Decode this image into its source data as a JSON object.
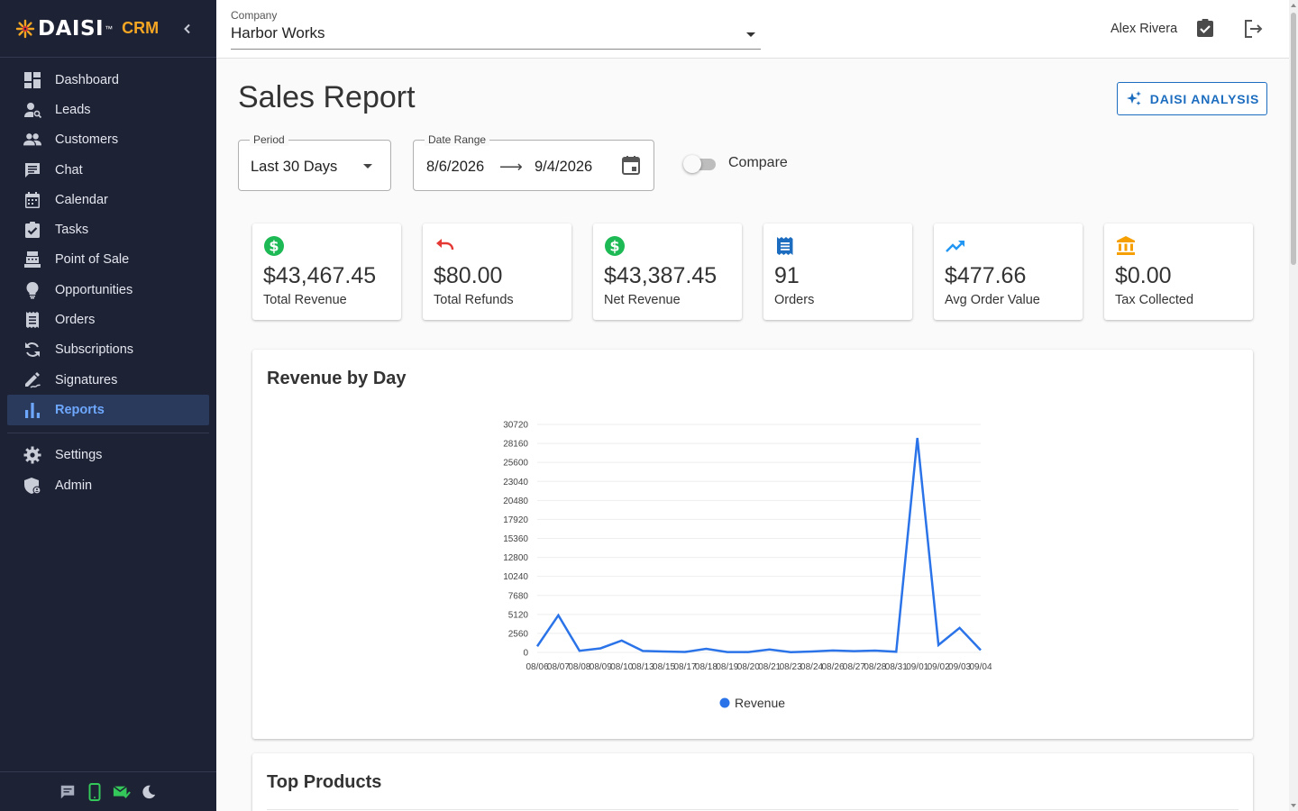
{
  "brand": {
    "name": "DAISI",
    "tm": "™",
    "product": "CRM",
    "accent": "#f5a623"
  },
  "sidebar": {
    "items": [
      {
        "label": "Dashboard",
        "icon": "dashboard-icon"
      },
      {
        "label": "Leads",
        "icon": "person-search-icon"
      },
      {
        "label": "Customers",
        "icon": "people-icon"
      },
      {
        "label": "Chat",
        "icon": "chat-icon"
      },
      {
        "label": "Calendar",
        "icon": "calendar-icon"
      },
      {
        "label": "Tasks",
        "icon": "task-check-icon"
      },
      {
        "label": "Point of Sale",
        "icon": "register-icon"
      },
      {
        "label": "Opportunities",
        "icon": "lightbulb-icon"
      },
      {
        "label": "Orders",
        "icon": "receipt-icon"
      },
      {
        "label": "Subscriptions",
        "icon": "refresh-icon"
      },
      {
        "label": "Signatures",
        "icon": "signature-icon"
      },
      {
        "label": "Reports",
        "icon": "bar-chart-icon",
        "active": true
      }
    ],
    "bottom_items": [
      {
        "label": "Settings",
        "icon": "gear-icon"
      },
      {
        "label": "Admin",
        "icon": "admin-shield-icon"
      }
    ],
    "footer_icons": [
      "chat-bubble-icon",
      "mobile-phone-icon",
      "mail-check-icon",
      "dark-mode-icon"
    ]
  },
  "topbar": {
    "company_label": "Company",
    "company_value": "Harbor Works",
    "user_name": "Alex Rivera"
  },
  "page": {
    "title": "Sales Report",
    "analysis_button": "DAISI ANALYSIS",
    "period": {
      "label": "Period",
      "value": "Last 30 Days"
    },
    "date_range": {
      "label": "Date Range",
      "start": "8/6/2026",
      "arrow": "⟶",
      "end": "9/4/2026"
    },
    "compare_label": "Compare"
  },
  "kpis": [
    {
      "value": "$43,467.45",
      "label": "Total Revenue",
      "icon": "dollar-circle-icon",
      "color": "#1db954"
    },
    {
      "value": "$80.00",
      "label": "Total Refunds",
      "icon": "undo-icon",
      "color": "#e53935"
    },
    {
      "value": "$43,387.45",
      "label": "Net Revenue",
      "icon": "dollar-circle-icon",
      "color": "#1db954"
    },
    {
      "value": "91",
      "label": "Orders",
      "icon": "receipt-icon",
      "color": "#1c6dbf"
    },
    {
      "value": "$477.66",
      "label": "Avg Order Value",
      "icon": "trending-up-icon",
      "color": "#2196f3"
    },
    {
      "value": "$0.00",
      "label": "Tax Collected",
      "icon": "bank-icon",
      "color": "#f5a000"
    }
  ],
  "chart": {
    "title": "Revenue by Day"
  },
  "chart_data": {
    "type": "line",
    "title": "Revenue by Day",
    "categories": [
      "08/06",
      "08/07",
      "08/08",
      "08/09",
      "08/10",
      "08/13",
      "08/15",
      "08/17",
      "08/18",
      "08/19",
      "08/20",
      "08/21",
      "08/23",
      "08/24",
      "08/26",
      "08/27",
      "08/28",
      "08/31",
      "09/01",
      "09/02",
      "09/03",
      "09/04"
    ],
    "series": [
      {
        "name": "Revenue",
        "color": "#2b73e8",
        "values": [
          820,
          5000,
          220,
          550,
          1600,
          200,
          120,
          60,
          480,
          40,
          50,
          400,
          30,
          120,
          260,
          170,
          250,
          90,
          28900,
          1000,
          3300,
          300
        ]
      }
    ],
    "yticks": [
      0,
      2560,
      5120,
      7680,
      10240,
      12800,
      15360,
      17920,
      20480,
      23040,
      25600,
      28160,
      30720
    ],
    "ylim": [
      0,
      30720
    ],
    "grid": true,
    "legend": "bottom"
  },
  "products": {
    "title": "Top Products"
  }
}
